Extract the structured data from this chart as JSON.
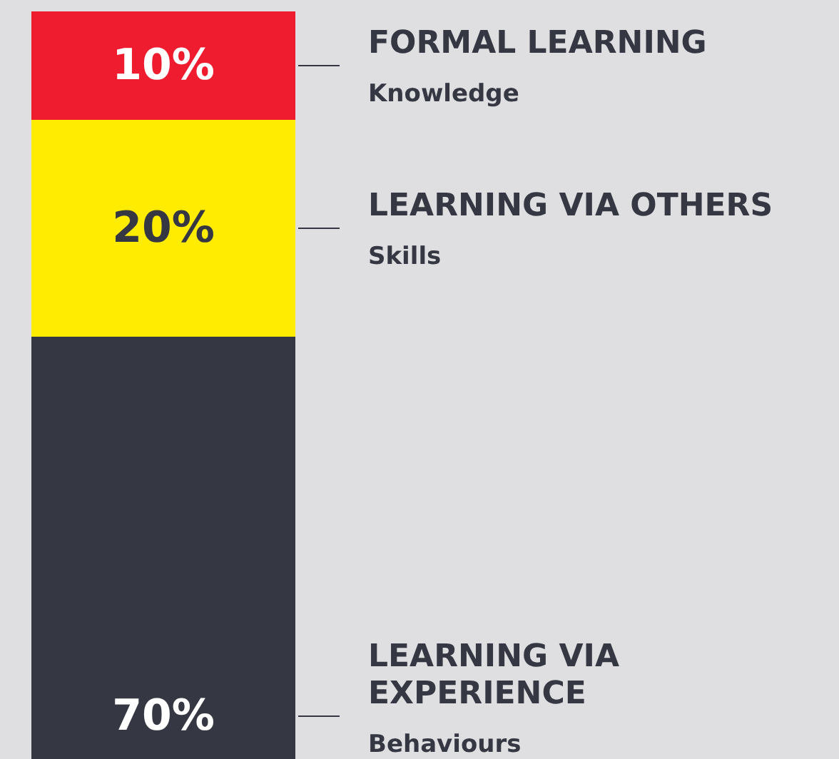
{
  "chart_data": {
    "type": "bar",
    "stacked": true,
    "categories": [
      null
    ],
    "series": [
      {
        "name": "LEARNING VIA EXPERIENCE",
        "color": "#353743",
        "values": [
          70
        ],
        "value_labels": [
          "70%"
        ]
      },
      {
        "name": "LEARNING VIA OTHERS",
        "color": "#ffec00",
        "values": [
          20
        ],
        "value_labels": [
          "20%"
        ]
      },
      {
        "name": "FORMAL LEARNING",
        "color": "#ee1c2e",
        "values": [
          10
        ],
        "value_labels": [
          "10%"
        ]
      }
    ],
    "annotations": [
      "Behaviours",
      "Skills",
      "Knowledge"
    ],
    "legend": false,
    "grid": false
  }
}
